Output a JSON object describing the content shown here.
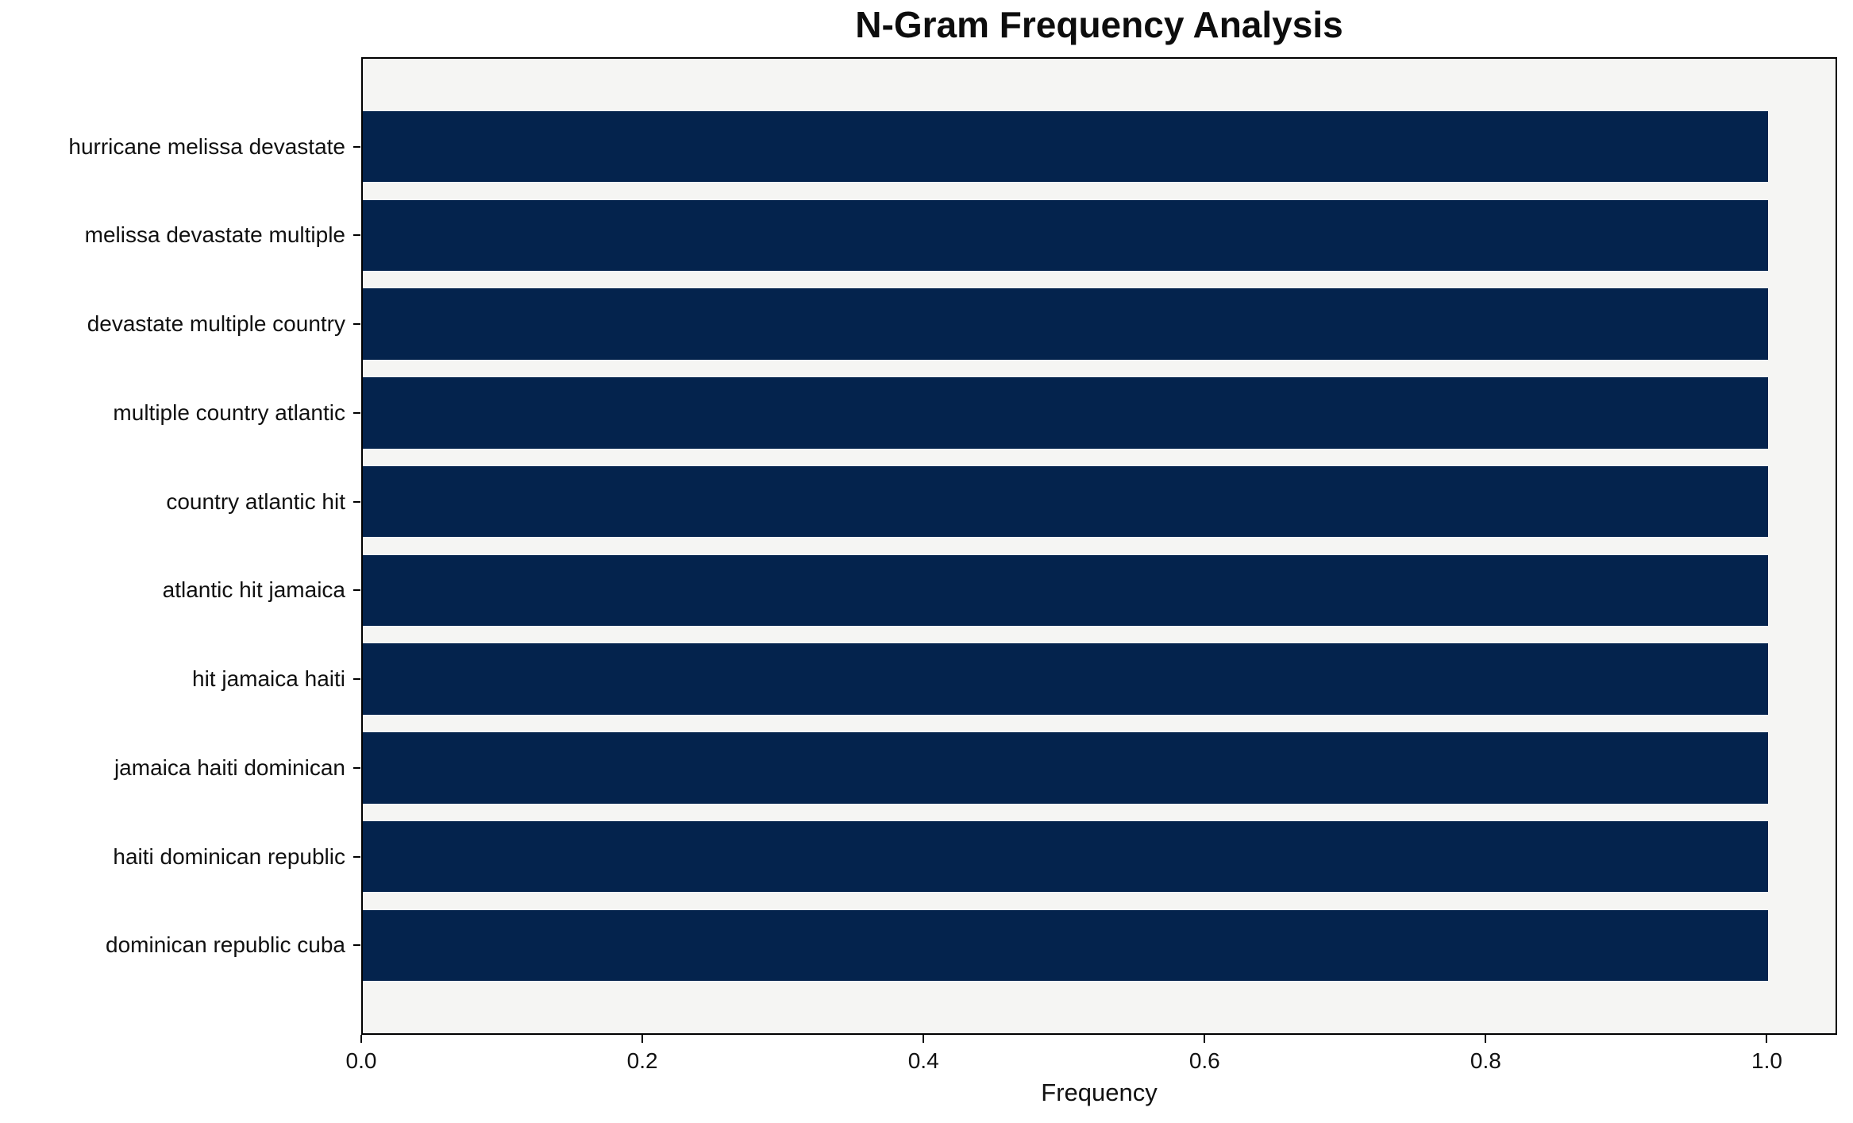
{
  "chart_data": {
    "type": "bar",
    "orientation": "horizontal",
    "title": "N-Gram Frequency Analysis",
    "xlabel": "Frequency",
    "ylabel": "",
    "categories": [
      "hurricane melissa devastate",
      "melissa devastate multiple",
      "devastate multiple country",
      "multiple country atlantic",
      "country atlantic hit",
      "atlantic hit jamaica",
      "hit jamaica haiti",
      "jamaica haiti dominican",
      "haiti dominican republic",
      "dominican republic cuba"
    ],
    "values": [
      1.0,
      1.0,
      1.0,
      1.0,
      1.0,
      1.0,
      1.0,
      1.0,
      1.0,
      1.0
    ],
    "xlim": [
      0,
      1.05
    ],
    "xticks": [
      0.0,
      0.2,
      0.4,
      0.6,
      0.8,
      1.0
    ],
    "xtick_labels": [
      "0.0",
      "0.2",
      "0.4",
      "0.6",
      "0.8",
      "1.0"
    ],
    "grid": false,
    "legend": null,
    "colors": {
      "bar": "#04234d",
      "plot_background": "#f5f5f3",
      "figure_background": "#ffffff",
      "spine": "#000000",
      "text": "#111111"
    }
  }
}
